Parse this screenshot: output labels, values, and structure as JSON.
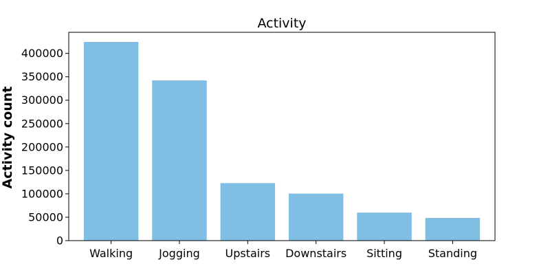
{
  "chart_data": {
    "type": "bar",
    "title": "Activity",
    "xlabel": "",
    "ylabel": "Activity count",
    "categories": [
      "Walking",
      "Jogging",
      "Upstairs",
      "Downstairs",
      "Sitting",
      "Standing"
    ],
    "values": [
      424400,
      342200,
      122900,
      100400,
      59900,
      48400
    ],
    "ylim": [
      0,
      445000
    ],
    "yticks": [
      0,
      50000,
      100000,
      150000,
      200000,
      250000,
      300000,
      350000,
      400000
    ],
    "grid": false,
    "legend": "none",
    "colors": {
      "bar": "#80bee3"
    }
  }
}
